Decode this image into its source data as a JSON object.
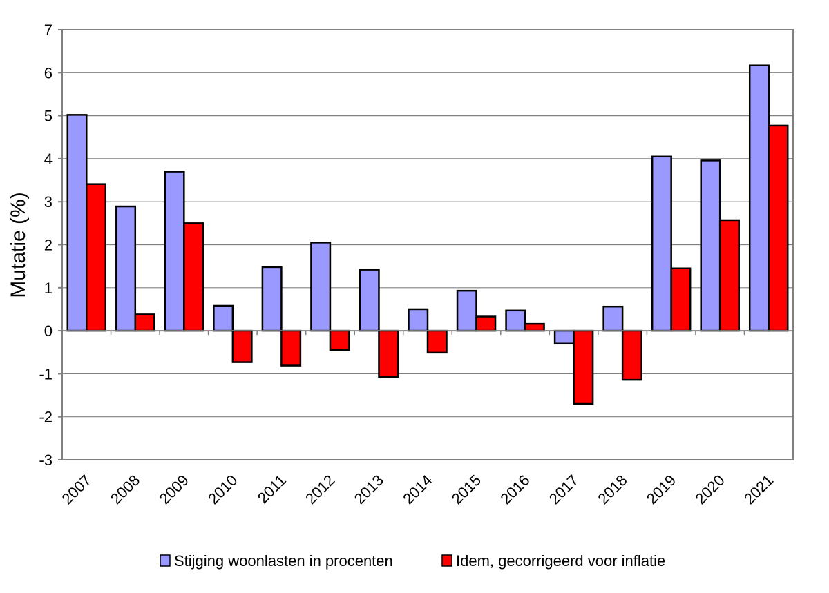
{
  "chart_data": {
    "type": "bar",
    "title": "",
    "xlabel": "",
    "ylabel": "Mutatie (%)",
    "ylim": [
      -3,
      7
    ],
    "yticks": [
      -3,
      -2,
      -1,
      0,
      1,
      2,
      3,
      4,
      5,
      6,
      7
    ],
    "grid": true,
    "legend_position": "bottom",
    "categories": [
      "2007",
      "2008",
      "2009",
      "2010",
      "2011",
      "2012",
      "2013",
      "2014",
      "2015",
      "2016",
      "2017",
      "2018",
      "2019",
      "2020",
      "2021"
    ],
    "series": [
      {
        "name": "Stijging woonlasten in procenten",
        "color": "#9999ff",
        "values": [
          5.02,
          2.89,
          3.7,
          0.58,
          1.48,
          2.05,
          1.42,
          0.5,
          0.93,
          0.47,
          -0.3,
          0.56,
          4.05,
          3.96,
          6.17
        ]
      },
      {
        "name": "Idem, gecorrigeerd voor inflatie",
        "color": "#ff0000",
        "values": [
          3.41,
          0.38,
          2.5,
          -0.73,
          -0.81,
          -0.45,
          -1.07,
          -0.51,
          0.33,
          0.16,
          -1.7,
          -1.14,
          1.45,
          2.57,
          4.77
        ]
      }
    ]
  }
}
